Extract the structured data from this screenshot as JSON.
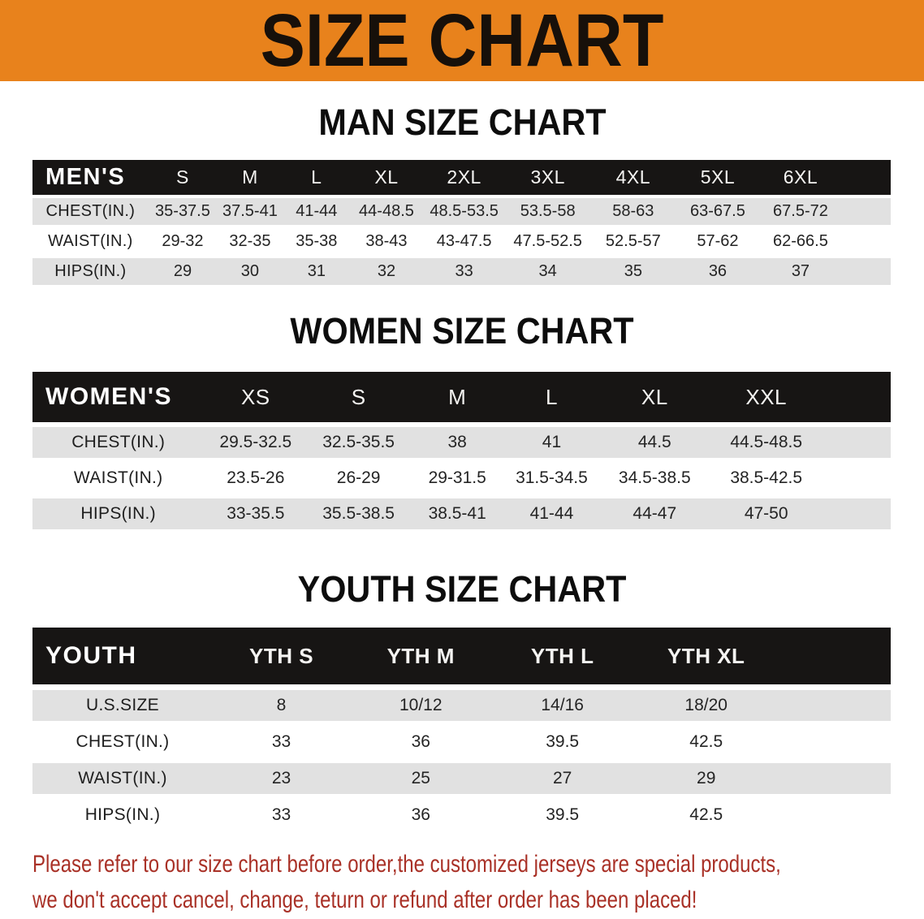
{
  "banner": {
    "title": "SIZE CHART"
  },
  "sections": {
    "men": {
      "heading": "MAN SIZE CHART",
      "table": {
        "header": [
          "MEN'S",
          "S",
          "M",
          "L",
          "XL",
          "2XL",
          "3XL",
          "4XL",
          "5XL",
          "6XL"
        ],
        "rows": [
          [
            "CHEST(IN.)",
            "35-37.5",
            "37.5-41",
            "41-44",
            "44-48.5",
            "48.5-53.5",
            "53.5-58",
            "58-63",
            "63-67.5",
            "67.5-72"
          ],
          [
            "WAIST(IN.)",
            "29-32",
            "32-35",
            "35-38",
            "38-43",
            "43-47.5",
            "47.5-52.5",
            "52.5-57",
            "57-62",
            "62-66.5"
          ],
          [
            "HIPS(IN.)",
            "29",
            "30",
            "31",
            "32",
            "33",
            "34",
            "35",
            "36",
            "37"
          ]
        ]
      }
    },
    "women": {
      "heading": "WOMEN SIZE CHART",
      "table": {
        "header": [
          "WOMEN'S",
          "XS",
          "S",
          "M",
          "L",
          "XL",
          "XXL"
        ],
        "rows": [
          [
            "CHEST(IN.)",
            "29.5-32.5",
            "32.5-35.5",
            "38",
            "41",
            "44.5",
            "44.5-48.5"
          ],
          [
            "WAIST(IN.)",
            "23.5-26",
            "26-29",
            "29-31.5",
            "31.5-34.5",
            "34.5-38.5",
            "38.5-42.5"
          ],
          [
            "HIPS(IN.)",
            "33-35.5",
            "35.5-38.5",
            "38.5-41",
            "41-44",
            "44-47",
            "47-50"
          ]
        ]
      }
    },
    "youth": {
      "heading": "YOUTH SIZE CHART",
      "table": {
        "header": [
          "YOUTH",
          "YTH S",
          "YTH M",
          "YTH L",
          "YTH XL"
        ],
        "rows": [
          [
            "U.S.SIZE",
            "8",
            "10/12",
            "14/16",
            "18/20"
          ],
          [
            "CHEST(IN.)",
            "33",
            "36",
            "39.5",
            "42.5"
          ],
          [
            "WAIST(IN.)",
            "23",
            "25",
            "27",
            "29"
          ],
          [
            "HIPS(IN.)",
            "33",
            "36",
            "39.5",
            "42.5"
          ]
        ]
      }
    }
  },
  "disclaimer": {
    "line1": "Please refer to our size chart before order,the customized jerseys are special products,",
    "line2": "we don't accept cancel, change, teturn or refund after order has been placed!"
  },
  "colors": {
    "banner_bg": "#E8821C",
    "header_bar": "#171514",
    "row_gray": "#E1E1E1",
    "row_white": "#FFFFFF",
    "disclaimer_red": "#A93127"
  }
}
